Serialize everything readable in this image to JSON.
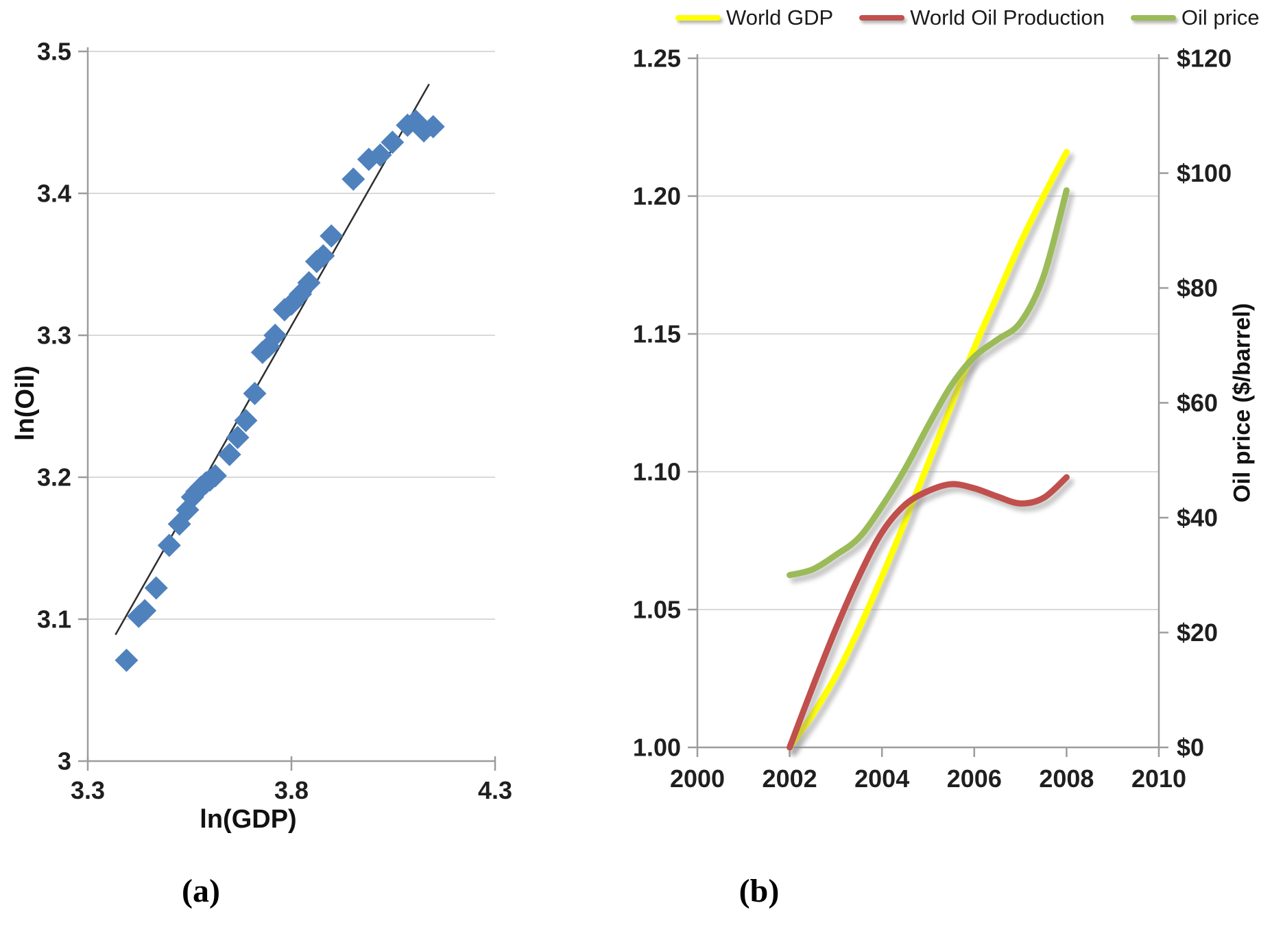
{
  "figure": {
    "caption_a": "(a)",
    "caption_b": "(b)"
  },
  "colors": {
    "scatter_marker": "#4F81BD",
    "trendline": "#2e2e2e",
    "series_world_gdp": "#FFFF00",
    "series_world_oil_production": "#C0504D",
    "series_oil_price": "#9BBB59",
    "gridline": "#D9D9D9",
    "axis": "#9C9C9C",
    "shadow": "#8F8F8F",
    "text": "#1F1F1F"
  },
  "chart_data": [
    {
      "type": "scatter",
      "xlabel": "ln(GDP)",
      "ylabel": "ln(Oil)",
      "xlim": [
        3.3,
        4.3
      ],
      "ylim": [
        3.0,
        3.5
      ],
      "xticks": [
        3.3,
        3.8,
        4.3
      ],
      "xtick_labels": [
        "3.3",
        "3.8",
        "4.3"
      ],
      "yticks": [
        3.0,
        3.1,
        3.2,
        3.3,
        3.4,
        3.5
      ],
      "ytick_labels": [
        "3",
        "3.1",
        "3.2",
        "3.3",
        "3.4",
        "3.5"
      ],
      "grid": true,
      "marker": "diamond",
      "points": [
        [
          3.395,
          3.071
        ],
        [
          3.425,
          3.102
        ],
        [
          3.44,
          3.106
        ],
        [
          3.468,
          3.122
        ],
        [
          3.5,
          3.152
        ],
        [
          3.525,
          3.167
        ],
        [
          3.545,
          3.177
        ],
        [
          3.557,
          3.186
        ],
        [
          3.568,
          3.19
        ],
        [
          3.578,
          3.193
        ],
        [
          3.59,
          3.196
        ],
        [
          3.6,
          3.198
        ],
        [
          3.613,
          3.201
        ],
        [
          3.648,
          3.216
        ],
        [
          3.668,
          3.228
        ],
        [
          3.688,
          3.24
        ],
        [
          3.71,
          3.259
        ],
        [
          3.729,
          3.288
        ],
        [
          3.744,
          3.292
        ],
        [
          3.76,
          3.3
        ],
        [
          3.783,
          3.318
        ],
        [
          3.8,
          3.322
        ],
        [
          3.822,
          3.329
        ],
        [
          3.843,
          3.337
        ],
        [
          3.862,
          3.352
        ],
        [
          3.878,
          3.356
        ],
        [
          3.898,
          3.37
        ],
        [
          3.952,
          3.41
        ],
        [
          3.99,
          3.424
        ],
        [
          4.018,
          3.427
        ],
        [
          4.048,
          3.436
        ],
        [
          4.085,
          3.448
        ],
        [
          4.105,
          3.451
        ],
        [
          4.125,
          3.444
        ],
        [
          4.148,
          3.447
        ]
      ],
      "trendline": {
        "x1": 3.368,
        "y1": 3.089,
        "x2": 4.138,
        "y2": 3.477
      }
    },
    {
      "type": "line",
      "xlim": [
        2000,
        2010
      ],
      "xticks": [
        2000,
        2002,
        2004,
        2006,
        2008,
        2010
      ],
      "xtick_labels": [
        "2000",
        "2002",
        "2004",
        "2006",
        "2008",
        "2010"
      ],
      "ylim_left": [
        1.0,
        1.25
      ],
      "yticks_left": [
        1.0,
        1.05,
        1.1,
        1.15,
        1.2,
        1.25
      ],
      "ytick_labels_left": [
        "1.00",
        "1.05",
        "1.10",
        "1.15",
        "1.20",
        "1.25"
      ],
      "ylim_right": [
        0,
        120
      ],
      "yticks_right": [
        0,
        20,
        40,
        60,
        80,
        100,
        120
      ],
      "ytick_labels_right": [
        "$0",
        "$20",
        "$40",
        "$60",
        "$80",
        "$100",
        "$120"
      ],
      "ylabel_right": "Oil price ($/barrel)",
      "grid": true,
      "legend_position": "top",
      "x": [
        2002,
        2002.5,
        2003,
        2003.5,
        2004,
        2004.5,
        2005,
        2005.5,
        2006,
        2006.5,
        2007,
        2007.5,
        2008
      ],
      "series": [
        {
          "name": "World GDP",
          "axis": "left",
          "color": "#FFFF00",
          "values": [
            1.0,
            1.012,
            1.026,
            1.043,
            1.062,
            1.082,
            1.103,
            1.124,
            1.145,
            1.164,
            1.183,
            1.2,
            1.216
          ]
        },
        {
          "name": "World Oil Production",
          "axis": "left",
          "color": "#C0504D",
          "values": [
            1.0,
            1.022,
            1.043,
            1.062,
            1.078,
            1.088,
            1.093,
            1.0955,
            1.094,
            1.091,
            1.0885,
            1.0905,
            1.098
          ]
        },
        {
          "name": "Oil price",
          "axis": "right",
          "color": "#9BBB59",
          "values": [
            30,
            31,
            33.5,
            36.5,
            42,
            48.5,
            56,
            63,
            68,
            71,
            74,
            82,
            97
          ]
        }
      ]
    }
  ],
  "legend": {
    "items": [
      {
        "label": "World GDP",
        "color": "#FFFF00"
      },
      {
        "label": "World Oil Production",
        "color": "#C0504D"
      },
      {
        "label": "Oil price",
        "color": "#9BBB59"
      }
    ]
  }
}
